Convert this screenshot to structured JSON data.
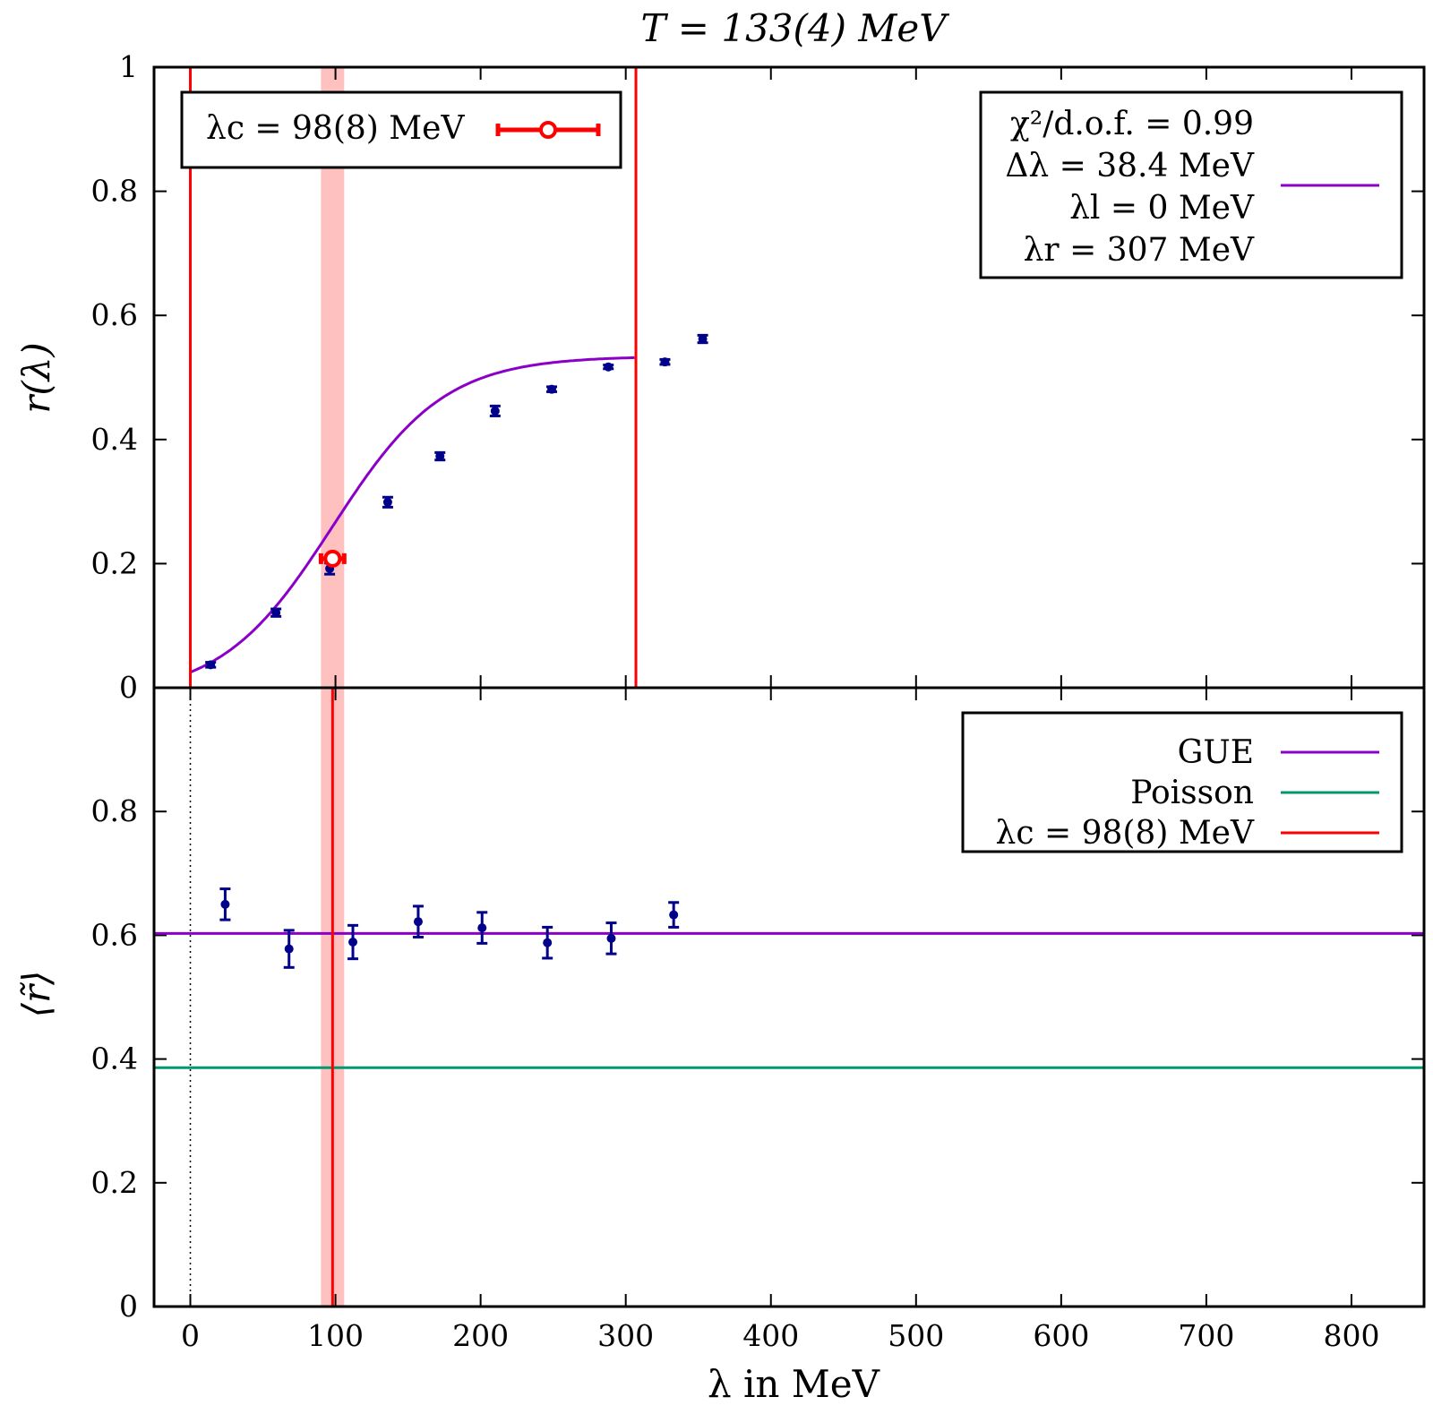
{
  "chart_data": {
    "title": "T = 133(4) MeV",
    "xlabel": "λ in MeV",
    "xlim": [
      -25,
      850
    ],
    "xticks": [
      0,
      100,
      200,
      300,
      400,
      500,
      600,
      700,
      800
    ],
    "colors": {
      "data": "#00008b",
      "fit": "#8b00c8",
      "poisson": "#009970",
      "lambda_c": "#ff0000",
      "band": "#ffc0c0"
    },
    "panels": [
      {
        "id": "top",
        "type": "scatter",
        "ylabel": "r(λ)",
        "ylim": [
          0,
          1
        ],
        "yticks": [
          "0",
          "0.2",
          "0.4",
          "0.6",
          "0.8",
          "1"
        ],
        "points": [
          {
            "x": 14,
            "y": 0.037,
            "err": 0.004
          },
          {
            "x": 59,
            "y": 0.121,
            "err": 0.006
          },
          {
            "x": 96,
            "y": 0.192,
            "err": 0.009
          },
          {
            "x": 136,
            "y": 0.299,
            "err": 0.008
          },
          {
            "x": 172,
            "y": 0.373,
            "err": 0.006
          },
          {
            "x": 210,
            "y": 0.446,
            "err": 0.008
          },
          {
            "x": 249,
            "y": 0.481,
            "err": 0.004
          },
          {
            "x": 288,
            "y": 0.517,
            "err": 0.003
          },
          {
            "x": 327,
            "y": 0.525,
            "err": 0.004
          },
          {
            "x": 353,
            "y": 0.562,
            "err": 0.006
          }
        ],
        "fit": {
          "lambda_l": 0,
          "lambda_r": 307,
          "lambda_c": 98,
          "delta_lambda": 38.4,
          "low": 0.0,
          "high": 0.61
        },
        "vlines": [
          0,
          307
        ],
        "lambda_c_point": {
          "x": 98,
          "y": 0.208,
          "xerr": 8
        },
        "band": [
          90,
          106
        ],
        "legend_left": {
          "label": "λc = 98(8) MeV"
        },
        "legend_right": {
          "lines": [
            "χ²/d.o.f. = 0.99",
            "Δλ = 38.4 MeV",
            "λl = 0 MeV",
            "λr = 307 MeV"
          ]
        }
      },
      {
        "id": "bottom",
        "type": "scatter",
        "ylabel": "⟨r̃⟩",
        "ylim": [
          0,
          1
        ],
        "yticks": [
          "0",
          "0.2",
          "0.4",
          "0.6",
          "0.8",
          ""
        ],
        "points": [
          {
            "x": 24,
            "y": 0.65,
            "err": 0.025
          },
          {
            "x": 68,
            "y": 0.578,
            "err": 0.03
          },
          {
            "x": 112,
            "y": 0.589,
            "err": 0.027
          },
          {
            "x": 157,
            "y": 0.622,
            "err": 0.025
          },
          {
            "x": 201,
            "y": 0.612,
            "err": 0.025
          },
          {
            "x": 246,
            "y": 0.588,
            "err": 0.025
          },
          {
            "x": 290,
            "y": 0.595,
            "err": 0.025
          },
          {
            "x": 333,
            "y": 0.633,
            "err": 0.02
          }
        ],
        "hlines": [
          {
            "name": "GUE",
            "y": 0.603
          },
          {
            "name": "Poisson",
            "y": 0.386
          }
        ],
        "vline": 98,
        "dotted_vline": 0,
        "band": [
          90,
          106
        ],
        "legend": [
          "GUE",
          "Poisson",
          "λc = 98(8) MeV"
        ]
      }
    ]
  }
}
